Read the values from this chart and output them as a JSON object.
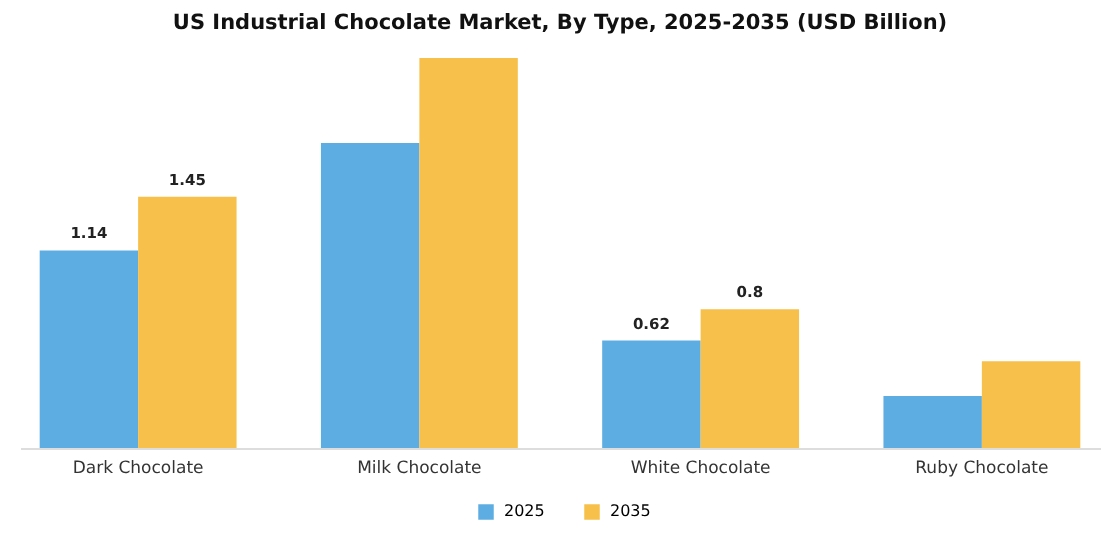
{
  "chart_data": {
    "type": "bar",
    "title": "US Industrial Chocolate Market, By Type, 2025-2035 (USD Billion)",
    "categories": [
      "Dark Chocolate",
      "Milk Chocolate",
      "White Chocolate",
      "Ruby Chocolate"
    ],
    "series": [
      {
        "name": "2025",
        "color": "#5dade2",
        "values": [
          1.14,
          1.76,
          0.62,
          0.3
        ],
        "value_labels": [
          "1.14",
          null,
          "0.62",
          null
        ]
      },
      {
        "name": "2035",
        "color": "#f7c04a",
        "values": [
          1.45,
          2.25,
          0.8,
          0.5
        ],
        "value_labels": [
          "1.45",
          null,
          "0.8",
          null
        ]
      }
    ],
    "tick_labels": "x",
    "legend": "bottom"
  }
}
